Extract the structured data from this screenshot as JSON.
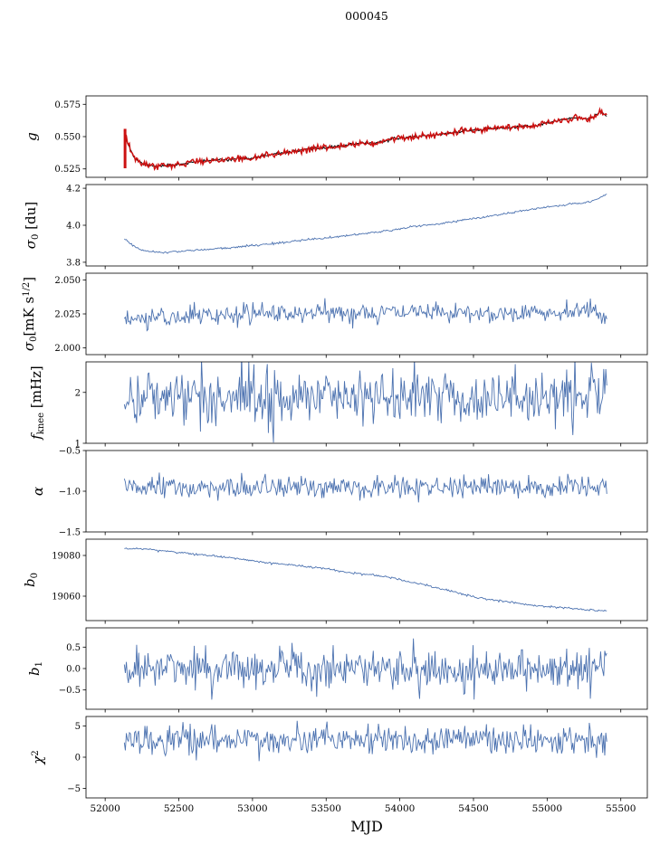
{
  "chart_data": {
    "type": "line",
    "title": "000045",
    "xlabel": "MJD",
    "xlim": [
      51870,
      55680
    ],
    "x_data_range": [
      52130,
      55405
    ],
    "x_ticks": [
      52000,
      52500,
      53000,
      53500,
      54000,
      54500,
      55000,
      55500
    ],
    "x_tick_labels": [
      "52000",
      "52500",
      "53000",
      "53500",
      "54000",
      "54500",
      "55000",
      "55500"
    ],
    "panels": [
      {
        "name": "g",
        "ylabel_parts": [
          {
            "t": "g",
            "italic": true
          }
        ],
        "label_offset": 55,
        "ylim": [
          0.5185,
          0.5815
        ],
        "yticks": [
          0.525,
          0.55,
          0.575
        ],
        "ytick_labels": [
          "0.525",
          "0.550",
          "0.575"
        ],
        "trend": [
          [
            52130,
            0.553
          ],
          [
            52160,
            0.543
          ],
          [
            52200,
            0.533
          ],
          [
            52260,
            0.5285
          ],
          [
            52350,
            0.5272
          ],
          [
            52450,
            0.5278
          ],
          [
            52550,
            0.5295
          ],
          [
            52700,
            0.5315
          ],
          [
            52850,
            0.5325
          ],
          [
            53000,
            0.5335
          ],
          [
            53100,
            0.5355
          ],
          [
            53250,
            0.538
          ],
          [
            53400,
            0.5405
          ],
          [
            53500,
            0.5415
          ],
          [
            53600,
            0.5425
          ],
          [
            53700,
            0.5445
          ],
          [
            53850,
            0.5455
          ],
          [
            54000,
            0.549
          ],
          [
            54150,
            0.5505
          ],
          [
            54300,
            0.552
          ],
          [
            54450,
            0.5545
          ],
          [
            54600,
            0.556
          ],
          [
            54750,
            0.557
          ],
          [
            54900,
            0.558
          ],
          [
            55000,
            0.5605
          ],
          [
            55100,
            0.563
          ],
          [
            55180,
            0.5645
          ],
          [
            55250,
            0.5635
          ],
          [
            55320,
            0.5655
          ],
          [
            55360,
            0.5695
          ],
          [
            55405,
            0.566
          ]
        ],
        "series": [
          {
            "name": "model",
            "color": "#000000",
            "width": 1.0,
            "noise": 0.0005,
            "seed": 11,
            "n": 480
          },
          {
            "name": "data",
            "color": "#cc1111",
            "width": 1.5,
            "noise": 0.0012,
            "seed": 12,
            "n": 480
          }
        ],
        "extras": [
          {
            "type": "vline",
            "x": 52135,
            "y1": 0.5255,
            "y2": 0.556,
            "color": "#cc1111",
            "width": 3
          }
        ]
      },
      {
        "name": "sigma0-du",
        "ylabel_parts": [
          {
            "t": "σ",
            "italic": true
          },
          {
            "t": "0",
            "sub": true
          },
          {
            "t": " [du]"
          }
        ],
        "label_offset": 56,
        "ylim": [
          3.78,
          4.22
        ],
        "yticks": [
          3.8,
          4.0,
          4.2
        ],
        "ytick_labels": [
          "3.8",
          "4.0",
          "4.2"
        ],
        "trend": [
          [
            52130,
            3.93
          ],
          [
            52180,
            3.895
          ],
          [
            52260,
            3.862
          ],
          [
            52350,
            3.852
          ],
          [
            52450,
            3.856
          ],
          [
            52550,
            3.862
          ],
          [
            52700,
            3.87
          ],
          [
            52900,
            3.882
          ],
          [
            53100,
            3.898
          ],
          [
            53300,
            3.915
          ],
          [
            53500,
            3.932
          ],
          [
            53700,
            3.95
          ],
          [
            53900,
            3.968
          ],
          [
            54000,
            3.982
          ],
          [
            54100,
            3.995
          ],
          [
            54250,
            4.005
          ],
          [
            54400,
            4.025
          ],
          [
            54550,
            4.042
          ],
          [
            54700,
            4.06
          ],
          [
            54850,
            4.08
          ],
          [
            55000,
            4.098
          ],
          [
            55100,
            4.108
          ],
          [
            55200,
            4.118
          ],
          [
            55300,
            4.128
          ],
          [
            55350,
            4.145
          ],
          [
            55405,
            4.168
          ]
        ],
        "series": [
          {
            "name": "sigma0-du",
            "color": "#4c72b0",
            "width": 0.9,
            "noise": 0.003,
            "seed": 21,
            "n": 470
          }
        ]
      },
      {
        "name": "sigma0-mks",
        "ylabel_parts": [
          {
            "t": "σ",
            "italic": true
          },
          {
            "t": "0",
            "sub": true
          },
          {
            "t": "[mK s"
          },
          {
            "t": "1/2",
            "sup": true
          },
          {
            "t": "]"
          }
        ],
        "label_offset": 58,
        "ylim": [
          1.995,
          2.055
        ],
        "yticks": [
          2.0,
          2.025,
          2.05
        ],
        "ytick_labels": [
          "2.000",
          "2.025",
          "2.050"
        ],
        "trend": [
          [
            52130,
            2.02
          ],
          [
            52400,
            2.023
          ],
          [
            53000,
            2.025
          ],
          [
            53800,
            2.026
          ],
          [
            54600,
            2.026
          ],
          [
            55100,
            2.026
          ],
          [
            55300,
            2.03
          ],
          [
            55405,
            2.021
          ]
        ],
        "series": [
          {
            "name": "sigma0-mks",
            "color": "#4c72b0",
            "width": 0.9,
            "noise": 0.0035,
            "seed": 31,
            "n": 470
          }
        ]
      },
      {
        "name": "fknee",
        "ylabel_parts": [
          {
            "t": "f",
            "italic": true
          },
          {
            "t": "knee",
            "sub": true
          },
          {
            "t": " [mHz]"
          }
        ],
        "label_offset": 50,
        "ylim": [
          1.0,
          2.6
        ],
        "yticks": [
          1,
          2
        ],
        "ytick_labels": [
          "1",
          "2"
        ],
        "trend": [
          [
            52130,
            1.92
          ],
          [
            55405,
            1.92
          ]
        ],
        "series": [
          {
            "name": "fknee",
            "color": "#4c72b0",
            "width": 0.9,
            "noise": 0.27,
            "seed": 41,
            "n": 470
          }
        ]
      },
      {
        "name": "alpha",
        "ylabel_parts": [
          {
            "t": "α",
            "italic": true
          }
        ],
        "label_offset": 48,
        "ylim": [
          -1.5,
          -0.5
        ],
        "yticks": [
          -1.5,
          -1.0,
          -0.5
        ],
        "ytick_labels": [
          "−1.5",
          "−1.0",
          "−0.5"
        ],
        "trend": [
          [
            52130,
            -0.96
          ],
          [
            55405,
            -0.96
          ]
        ],
        "series": [
          {
            "name": "alpha",
            "color": "#4c72b0",
            "width": 0.9,
            "noise": 0.065,
            "seed": 51,
            "n": 470
          }
        ]
      },
      {
        "name": "b0",
        "ylabel_parts": [
          {
            "t": "b",
            "italic": true
          },
          {
            "t": "0",
            "sub": true
          }
        ],
        "label_offset": 57,
        "ylim": [
          19048,
          19088
        ],
        "yticks": [
          19060,
          19080
        ],
        "ytick_labels": [
          "19060",
          "19080"
        ],
        "trend": [
          [
            52130,
            19083.5
          ],
          [
            52300,
            19083
          ],
          [
            52500,
            19081.5
          ],
          [
            52700,
            19080
          ],
          [
            52900,
            19078.5
          ],
          [
            53100,
            19076.5
          ],
          [
            53300,
            19075
          ],
          [
            53500,
            19073.5
          ],
          [
            53650,
            19071.5
          ],
          [
            53800,
            19070.5
          ],
          [
            53950,
            19069
          ],
          [
            54050,
            19067
          ],
          [
            54150,
            19066
          ],
          [
            54250,
            19064
          ],
          [
            54350,
            19062.5
          ],
          [
            54450,
            19060.5
          ],
          [
            54550,
            19059
          ],
          [
            54700,
            19057.5
          ],
          [
            54850,
            19056
          ],
          [
            55000,
            19055
          ],
          [
            55150,
            19054
          ],
          [
            55300,
            19053.2
          ],
          [
            55405,
            19052.5
          ]
        ],
        "series": [
          {
            "name": "b0",
            "color": "#4c72b0",
            "width": 0.9,
            "noise": 0.25,
            "seed": 61,
            "n": 470
          }
        ]
      },
      {
        "name": "b1",
        "ylabel_parts": [
          {
            "t": "b",
            "italic": true
          },
          {
            "t": "1",
            "sub": true
          }
        ],
        "label_offset": 52,
        "ylim": [
          -0.95,
          0.95
        ],
        "yticks": [
          -0.5,
          0.0,
          0.5
        ],
        "ytick_labels": [
          "−0.5",
          "0.0",
          "0.5"
        ],
        "trend": [
          [
            52130,
            0.0
          ],
          [
            55405,
            0.0
          ]
        ],
        "series": [
          {
            "name": "b1",
            "color": "#4c72b0",
            "width": 0.9,
            "noise": 0.24,
            "seed": 71,
            "n": 470
          }
        ]
      },
      {
        "name": "chi2",
        "ylabel_parts": [
          {
            "t": "χ",
            "italic": true
          },
          {
            "t": "2",
            "sup": true
          }
        ],
        "label_offset": 48,
        "ylim": [
          -6.5,
          6.5
        ],
        "yticks": [
          -5,
          0,
          5
        ],
        "ytick_labels": [
          "−5",
          "0",
          "5"
        ],
        "trend": [
          [
            52130,
            2.6
          ],
          [
            52600,
            2.9
          ],
          [
            53000,
            2.7
          ],
          [
            53400,
            3.0
          ],
          [
            53800,
            2.8
          ],
          [
            54200,
            2.9
          ],
          [
            54600,
            3.0
          ],
          [
            55000,
            2.8
          ],
          [
            55405,
            2.9
          ]
        ],
        "series": [
          {
            "name": "chi2",
            "color": "#4c72b0",
            "width": 0.9,
            "noise": 1.15,
            "seed": 81,
            "n": 470
          }
        ]
      }
    ]
  }
}
